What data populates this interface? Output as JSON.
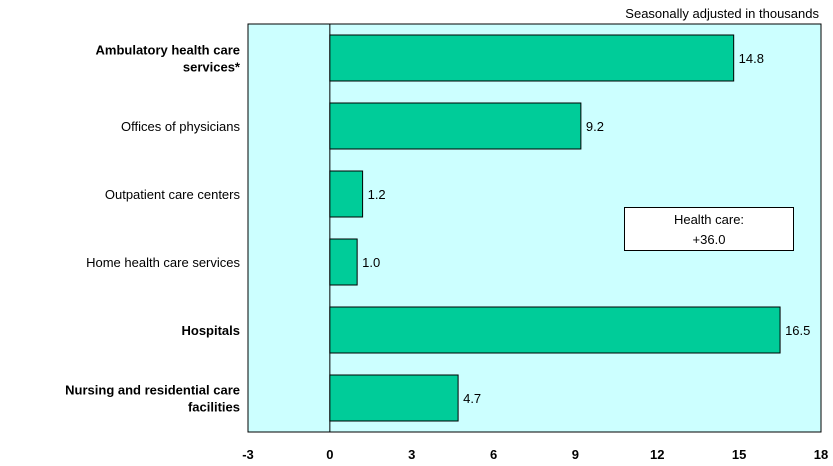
{
  "subtitle": "Seasonally adjusted in thousands",
  "annotation": {
    "line1": "Health care:",
    "line2": "+36.0"
  },
  "colors": {
    "plot_bg": "#ccffff",
    "bar_fill": "#00cc99",
    "border": "#000000"
  },
  "chart_data": {
    "type": "bar",
    "orientation": "horizontal",
    "categories": [
      {
        "label": [
          "Ambulatory health care",
          "services*"
        ],
        "bold": true
      },
      {
        "label": [
          "Offices of physicians"
        ],
        "bold": false
      },
      {
        "label": [
          "Outpatient care centers"
        ],
        "bold": false
      },
      {
        "label": [
          "Home health care services"
        ],
        "bold": false
      },
      {
        "label": [
          "Hospitals"
        ],
        "bold": true
      },
      {
        "label": [
          "Nursing and residential care",
          "facilities"
        ],
        "bold": true
      }
    ],
    "values": [
      14.8,
      9.2,
      1.2,
      1.0,
      16.5,
      4.7
    ],
    "value_labels": [
      "14.8",
      "9.2",
      "1.2",
      "1.0",
      "16.5",
      "4.7"
    ],
    "xlim": [
      -3,
      18
    ],
    "xticks": [
      -3,
      0,
      3,
      6,
      9,
      12,
      15,
      18
    ],
    "title": "",
    "xlabel": "",
    "ylabel": "",
    "grid": false,
    "legend": "none"
  }
}
